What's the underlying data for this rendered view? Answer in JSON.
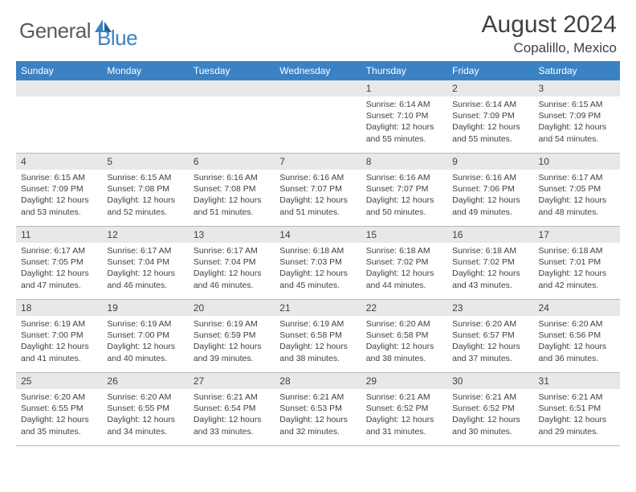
{
  "logo": {
    "text1": "General",
    "text2": "Blue"
  },
  "title": "August 2024",
  "subtitle": "Copalillo, Mexico",
  "colors": {
    "header_bg": "#3b82c4",
    "header_text": "#ffffff",
    "daynum_bg": "#e8e8e8",
    "text": "#404040",
    "logo_gray": "#5a5a5a",
    "logo_blue": "#3b82c4",
    "border": "#b8b8b8"
  },
  "day_names": [
    "Sunday",
    "Monday",
    "Tuesday",
    "Wednesday",
    "Thursday",
    "Friday",
    "Saturday"
  ],
  "weeks": [
    [
      null,
      null,
      null,
      null,
      {
        "n": "1",
        "sr": "Sunrise: 6:14 AM",
        "ss": "Sunset: 7:10 PM",
        "dl": "Daylight: 12 hours and 55 minutes."
      },
      {
        "n": "2",
        "sr": "Sunrise: 6:14 AM",
        "ss": "Sunset: 7:09 PM",
        "dl": "Daylight: 12 hours and 55 minutes."
      },
      {
        "n": "3",
        "sr": "Sunrise: 6:15 AM",
        "ss": "Sunset: 7:09 PM",
        "dl": "Daylight: 12 hours and 54 minutes."
      }
    ],
    [
      {
        "n": "4",
        "sr": "Sunrise: 6:15 AM",
        "ss": "Sunset: 7:09 PM",
        "dl": "Daylight: 12 hours and 53 minutes."
      },
      {
        "n": "5",
        "sr": "Sunrise: 6:15 AM",
        "ss": "Sunset: 7:08 PM",
        "dl": "Daylight: 12 hours and 52 minutes."
      },
      {
        "n": "6",
        "sr": "Sunrise: 6:16 AM",
        "ss": "Sunset: 7:08 PM",
        "dl": "Daylight: 12 hours and 51 minutes."
      },
      {
        "n": "7",
        "sr": "Sunrise: 6:16 AM",
        "ss": "Sunset: 7:07 PM",
        "dl": "Daylight: 12 hours and 51 minutes."
      },
      {
        "n": "8",
        "sr": "Sunrise: 6:16 AM",
        "ss": "Sunset: 7:07 PM",
        "dl": "Daylight: 12 hours and 50 minutes."
      },
      {
        "n": "9",
        "sr": "Sunrise: 6:16 AM",
        "ss": "Sunset: 7:06 PM",
        "dl": "Daylight: 12 hours and 49 minutes."
      },
      {
        "n": "10",
        "sr": "Sunrise: 6:17 AM",
        "ss": "Sunset: 7:05 PM",
        "dl": "Daylight: 12 hours and 48 minutes."
      }
    ],
    [
      {
        "n": "11",
        "sr": "Sunrise: 6:17 AM",
        "ss": "Sunset: 7:05 PM",
        "dl": "Daylight: 12 hours and 47 minutes."
      },
      {
        "n": "12",
        "sr": "Sunrise: 6:17 AM",
        "ss": "Sunset: 7:04 PM",
        "dl": "Daylight: 12 hours and 46 minutes."
      },
      {
        "n": "13",
        "sr": "Sunrise: 6:17 AM",
        "ss": "Sunset: 7:04 PM",
        "dl": "Daylight: 12 hours and 46 minutes."
      },
      {
        "n": "14",
        "sr": "Sunrise: 6:18 AM",
        "ss": "Sunset: 7:03 PM",
        "dl": "Daylight: 12 hours and 45 minutes."
      },
      {
        "n": "15",
        "sr": "Sunrise: 6:18 AM",
        "ss": "Sunset: 7:02 PM",
        "dl": "Daylight: 12 hours and 44 minutes."
      },
      {
        "n": "16",
        "sr": "Sunrise: 6:18 AM",
        "ss": "Sunset: 7:02 PM",
        "dl": "Daylight: 12 hours and 43 minutes."
      },
      {
        "n": "17",
        "sr": "Sunrise: 6:18 AM",
        "ss": "Sunset: 7:01 PM",
        "dl": "Daylight: 12 hours and 42 minutes."
      }
    ],
    [
      {
        "n": "18",
        "sr": "Sunrise: 6:19 AM",
        "ss": "Sunset: 7:00 PM",
        "dl": "Daylight: 12 hours and 41 minutes."
      },
      {
        "n": "19",
        "sr": "Sunrise: 6:19 AM",
        "ss": "Sunset: 7:00 PM",
        "dl": "Daylight: 12 hours and 40 minutes."
      },
      {
        "n": "20",
        "sr": "Sunrise: 6:19 AM",
        "ss": "Sunset: 6:59 PM",
        "dl": "Daylight: 12 hours and 39 minutes."
      },
      {
        "n": "21",
        "sr": "Sunrise: 6:19 AM",
        "ss": "Sunset: 6:58 PM",
        "dl": "Daylight: 12 hours and 38 minutes."
      },
      {
        "n": "22",
        "sr": "Sunrise: 6:20 AM",
        "ss": "Sunset: 6:58 PM",
        "dl": "Daylight: 12 hours and 38 minutes."
      },
      {
        "n": "23",
        "sr": "Sunrise: 6:20 AM",
        "ss": "Sunset: 6:57 PM",
        "dl": "Daylight: 12 hours and 37 minutes."
      },
      {
        "n": "24",
        "sr": "Sunrise: 6:20 AM",
        "ss": "Sunset: 6:56 PM",
        "dl": "Daylight: 12 hours and 36 minutes."
      }
    ],
    [
      {
        "n": "25",
        "sr": "Sunrise: 6:20 AM",
        "ss": "Sunset: 6:55 PM",
        "dl": "Daylight: 12 hours and 35 minutes."
      },
      {
        "n": "26",
        "sr": "Sunrise: 6:20 AM",
        "ss": "Sunset: 6:55 PM",
        "dl": "Daylight: 12 hours and 34 minutes."
      },
      {
        "n": "27",
        "sr": "Sunrise: 6:21 AM",
        "ss": "Sunset: 6:54 PM",
        "dl": "Daylight: 12 hours and 33 minutes."
      },
      {
        "n": "28",
        "sr": "Sunrise: 6:21 AM",
        "ss": "Sunset: 6:53 PM",
        "dl": "Daylight: 12 hours and 32 minutes."
      },
      {
        "n": "29",
        "sr": "Sunrise: 6:21 AM",
        "ss": "Sunset: 6:52 PM",
        "dl": "Daylight: 12 hours and 31 minutes."
      },
      {
        "n": "30",
        "sr": "Sunrise: 6:21 AM",
        "ss": "Sunset: 6:52 PM",
        "dl": "Daylight: 12 hours and 30 minutes."
      },
      {
        "n": "31",
        "sr": "Sunrise: 6:21 AM",
        "ss": "Sunset: 6:51 PM",
        "dl": "Daylight: 12 hours and 29 minutes."
      }
    ]
  ]
}
